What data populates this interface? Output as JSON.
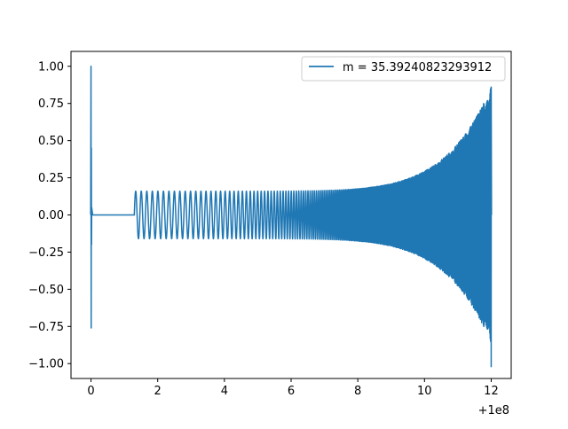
{
  "chart_data": {
    "type": "line",
    "title": "",
    "xlabel": "",
    "ylabel": "",
    "x_offset_label": "+1e8",
    "xlim": [
      -0.6,
      12.6
    ],
    "ylim": [
      -1.1,
      1.1
    ],
    "x_ticks": [
      0,
      2,
      4,
      6,
      8,
      10,
      12
    ],
    "x_tick_labels": [
      "0",
      "2",
      "4",
      "6",
      "8",
      "10",
      "12"
    ],
    "y_ticks": [
      1.0,
      0.75,
      0.5,
      0.25,
      0.0,
      -0.25,
      -0.5,
      -0.75,
      -1.0
    ],
    "y_tick_labels": [
      "1.00",
      "0.75",
      "0.50",
      "0.25",
      "0.00",
      "−0.25",
      "−0.50",
      "−0.75",
      "−1.00"
    ],
    "grid": false,
    "legend_position": "top-right",
    "series": [
      {
        "name": "m = 35.39240823293912",
        "color": "#1f77b4",
        "description_points": {
          "initial_spike": {
            "x": 0.0,
            "y_max": 1.0,
            "y_min": -0.76
          },
          "flat_segment": {
            "x_start": 0.05,
            "x_end": 1.3,
            "y": 0.0
          },
          "oscillation_start": {
            "x": 1.3,
            "amplitude": 0.16
          },
          "oscillation_mid": {
            "x": 8.0,
            "amplitude": 0.2
          },
          "oscillation_end": {
            "x": 12.0,
            "y_max": 0.86,
            "y_min": -1.02
          }
        }
      }
    ]
  },
  "legend": {
    "label": "m = 35.39240823293912"
  }
}
